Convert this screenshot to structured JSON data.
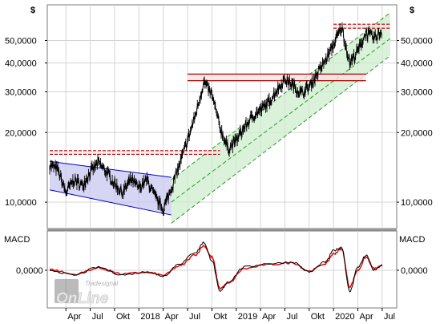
{
  "chart_data": [
    {
      "type": "candlestick",
      "title": "",
      "price_axis_unit": "$",
      "y_scale": "log",
      "ylim": [
        8000,
        68000
      ],
      "y_ticks": [
        {
          "value": 10000,
          "label": "10,0000"
        },
        {
          "value": 20000,
          "label": "20,0000"
        },
        {
          "value": 30000,
          "label": "30,0000"
        },
        {
          "value": 40000,
          "label": "40,0000"
        },
        {
          "value": 50000,
          "label": "50,0000"
        }
      ],
      "x_ticks": [
        {
          "date": "2017-04",
          "label": "Apr"
        },
        {
          "date": "2017-07",
          "label": "Jul"
        },
        {
          "date": "2017-10",
          "label": "Okt"
        },
        {
          "date": "2018-01",
          "label": "2018"
        },
        {
          "date": "2018-04",
          "label": "Apr"
        },
        {
          "date": "2018-07",
          "label": "Jul"
        },
        {
          "date": "2018-10",
          "label": "Okt"
        },
        {
          "date": "2019-01",
          "label": "2019"
        },
        {
          "date": "2019-04",
          "label": "Apr"
        },
        {
          "date": "2019-07",
          "label": "Jul"
        },
        {
          "date": "2019-10",
          "label": "Okt"
        },
        {
          "date": "2020-01",
          "label": "2020"
        },
        {
          "date": "2020-04",
          "label": "Apr"
        },
        {
          "date": "2020-07",
          "label": "Jul"
        }
      ],
      "x_range": [
        "2017-02",
        "2020-08"
      ],
      "grid": true,
      "price_path": [
        [
          "2017-02",
          14500
        ],
        [
          "2017-03",
          13800
        ],
        [
          "2017-04",
          11000
        ],
        [
          "2017-05",
          12500
        ],
        [
          "2017-06",
          11800
        ],
        [
          "2017-07",
          13500
        ],
        [
          "2017-08",
          14800
        ],
        [
          "2017-09",
          13500
        ],
        [
          "2017-10",
          12000
        ],
        [
          "2017-11",
          11000
        ],
        [
          "2017-12",
          12500
        ],
        [
          "2018-01",
          11500
        ],
        [
          "2018-02",
          12500
        ],
        [
          "2018-03",
          10500
        ],
        [
          "2018-04",
          9300
        ],
        [
          "2018-05",
          11500
        ],
        [
          "2018-06",
          14500
        ],
        [
          "2018-07",
          18500
        ],
        [
          "2018-08",
          24000
        ],
        [
          "2018-09",
          33000
        ],
        [
          "2018-10",
          29000
        ],
        [
          "2018-11",
          21000
        ],
        [
          "2018-12",
          17000
        ],
        [
          "2019-01",
          18500
        ],
        [
          "2019-02",
          21000
        ],
        [
          "2019-03",
          23500
        ],
        [
          "2019-04",
          25000
        ],
        [
          "2019-05",
          27000
        ],
        [
          "2019-06",
          30500
        ],
        [
          "2019-07",
          34000
        ],
        [
          "2019-08",
          32000
        ],
        [
          "2019-09",
          29500
        ],
        [
          "2019-10",
          31500
        ],
        [
          "2019-11",
          36000
        ],
        [
          "2019-12",
          41000
        ],
        [
          "2020-01",
          48000
        ],
        [
          "2020-02",
          57000
        ],
        [
          "2020-03",
          40000
        ],
        [
          "2020-04",
          45000
        ],
        [
          "2020-05",
          54000
        ],
        [
          "2020-06",
          51000
        ],
        [
          "2020-07",
          55000
        ]
      ],
      "channels": [
        {
          "name": "",
          "kind": "downtrend",
          "fill": "#c8c8f0",
          "edge": "#0000cc",
          "upper": [
            [
              "2017-02",
              15000
            ],
            [
              "2018-05",
              12800
            ]
          ],
          "lower": [
            [
              "2017-02",
              11300
            ],
            [
              "2018-05",
              8800
            ]
          ]
        },
        {
          "name": "",
          "kind": "uptrend",
          "fill": "#cdeccd",
          "edge": "#2e9a2e",
          "upper": [
            [
              "2018-05",
              12500
            ],
            [
              "2020-08",
              66000
            ]
          ],
          "middle": [
            [
              "2018-05",
              10000
            ],
            [
              "2020-08",
              51000
            ]
          ],
          "lower": [
            [
              "2018-05",
              8100
            ],
            [
              "2020-08",
              43000
            ]
          ]
        }
      ],
      "zones": [
        {
          "from_date": "2017-02",
          "to_date": "2018-11",
          "low": 16100,
          "high": 16700,
          "fill": "#f2e4e4",
          "edge": "#b00000"
        },
        {
          "from_date": "2018-07",
          "to_date": "2020-05",
          "low": 33500,
          "high": 35800,
          "fill": "#f2e4e4",
          "edge": "#b00000"
        },
        {
          "from_date": "2020-01",
          "to_date": "2020-08",
          "low": 56500,
          "high": 58800,
          "fill": "#f2e4e4",
          "edge": "#b00000"
        }
      ]
    },
    {
      "type": "line",
      "title": "MACD",
      "y_ticks": [
        {
          "value": 0,
          "label": "0,0000"
        }
      ],
      "ylim": [
        -2200,
        2200
      ],
      "series": [
        {
          "name": "",
          "color": "#000000",
          "values": [
            [
              "2017-02",
              0
            ],
            [
              "2017-05",
              -300
            ],
            [
              "2017-08",
              180
            ],
            [
              "2017-11",
              -280
            ],
            [
              "2018-02",
              -100
            ],
            [
              "2018-04",
              -350
            ],
            [
              "2018-06",
              400
            ],
            [
              "2018-08",
              1100
            ],
            [
              "2018-09",
              1700
            ],
            [
              "2018-10",
              600
            ],
            [
              "2018-11",
              -1300
            ],
            [
              "2018-12",
              -700
            ],
            [
              "2019-02",
              200
            ],
            [
              "2019-05",
              400
            ],
            [
              "2019-08",
              500
            ],
            [
              "2019-10",
              -100
            ],
            [
              "2019-12",
              500
            ],
            [
              "2020-01",
              1200
            ],
            [
              "2020-02",
              1400
            ],
            [
              "2020-03",
              -1300
            ],
            [
              "2020-04",
              200
            ],
            [
              "2020-05",
              900
            ],
            [
              "2020-06",
              0
            ],
            [
              "2020-07",
              300
            ]
          ]
        },
        {
          "name": "",
          "color": "#dd0000",
          "values": [
            [
              "2017-02",
              50
            ],
            [
              "2017-05",
              -250
            ],
            [
              "2017-08",
              130
            ],
            [
              "2017-11",
              -230
            ],
            [
              "2018-02",
              -120
            ],
            [
              "2018-04",
              -300
            ],
            [
              "2018-06",
              250
            ],
            [
              "2018-08",
              950
            ],
            [
              "2018-09",
              1500
            ],
            [
              "2018-10",
              800
            ],
            [
              "2018-11",
              -1100
            ],
            [
              "2018-12",
              -800
            ],
            [
              "2019-02",
              100
            ],
            [
              "2019-05",
              350
            ],
            [
              "2019-08",
              450
            ],
            [
              "2019-10",
              -50
            ],
            [
              "2019-12",
              400
            ],
            [
              "2020-01",
              1000
            ],
            [
              "2020-02",
              1300
            ],
            [
              "2020-03",
              -1000
            ],
            [
              "2020-04",
              0
            ],
            [
              "2020-05",
              800
            ],
            [
              "2020-06",
              100
            ],
            [
              "2020-07",
              250
            ]
          ]
        }
      ]
    }
  ],
  "watermark": {
    "line1": "Tradesignal",
    "line2": "OnLine"
  }
}
